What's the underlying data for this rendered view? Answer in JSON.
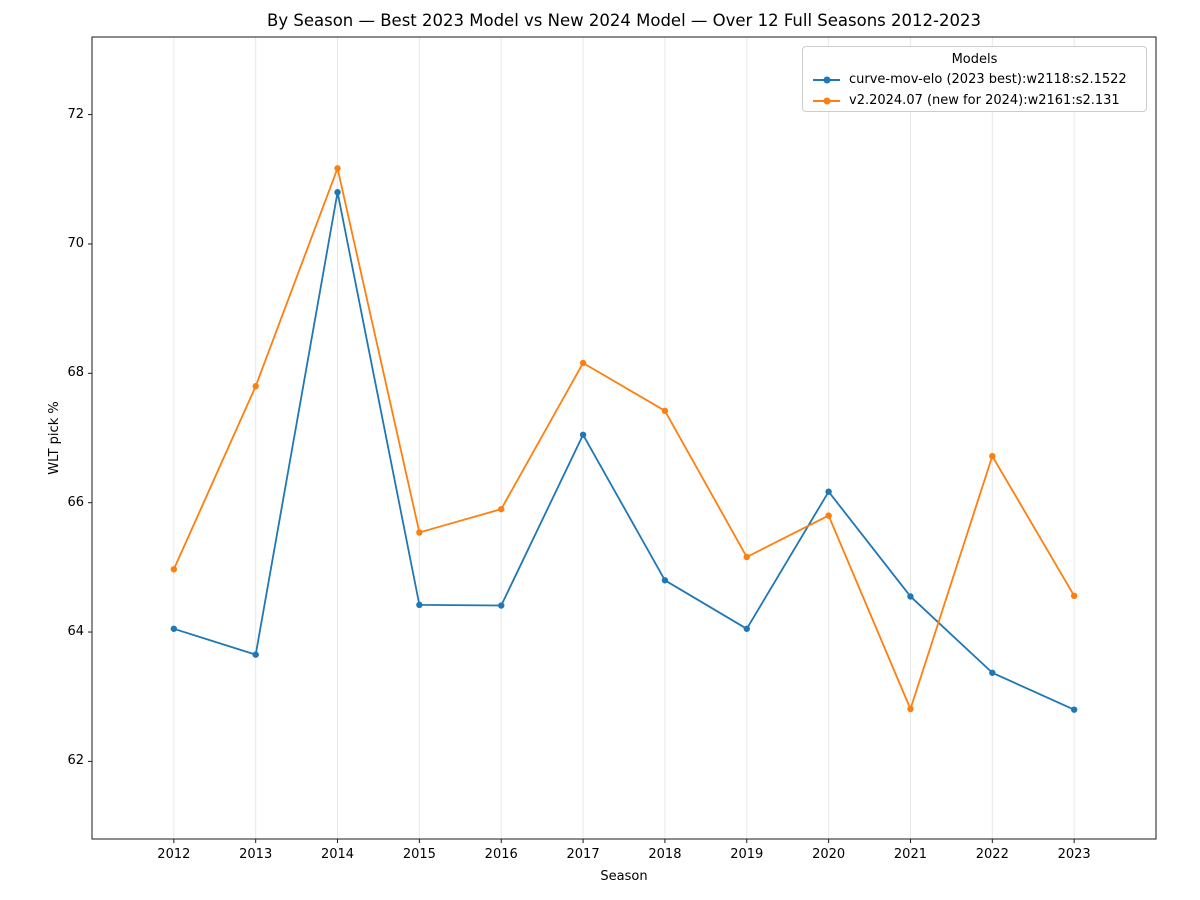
{
  "chart_data": {
    "type": "line",
    "title": "By Season — Best 2023 Model vs New 2024 Model — Over 12 Full Seasons 2012-2023",
    "xlabel": "Season",
    "ylabel": "WLT pick %",
    "legend_title": "Models",
    "legend_position": "upper right",
    "x": [
      2012,
      2013,
      2014,
      2015,
      2016,
      2017,
      2018,
      2019,
      2020,
      2021,
      2022,
      2023
    ],
    "series": [
      {
        "name": "curve-mov-elo (2023 best):w2118:s2.1522",
        "color": "#1f77b4",
        "values": [
          64.05,
          63.65,
          70.8,
          64.42,
          64.41,
          67.05,
          64.8,
          64.05,
          66.17,
          64.55,
          63.37,
          62.8
        ]
      },
      {
        "name": "v2.2024.07 (new for 2024):w2161:s2.131",
        "color": "#ff7f0e",
        "values": [
          64.97,
          67.8,
          71.17,
          65.54,
          65.9,
          68.16,
          67.42,
          65.16,
          65.8,
          62.81,
          66.72,
          64.56
        ]
      }
    ],
    "xlim": [
      2011,
      2024
    ],
    "ylim": [
      60.8,
      73.2
    ],
    "xticks": [
      2012,
      2013,
      2014,
      2015,
      2016,
      2017,
      2018,
      2019,
      2020,
      2021,
      2022,
      2023
    ],
    "yticks": [
      62,
      64,
      66,
      68,
      70,
      72
    ],
    "grid": "vertical",
    "grid_color": "#e8e8e8",
    "spine_color": "#1a1a1a"
  }
}
